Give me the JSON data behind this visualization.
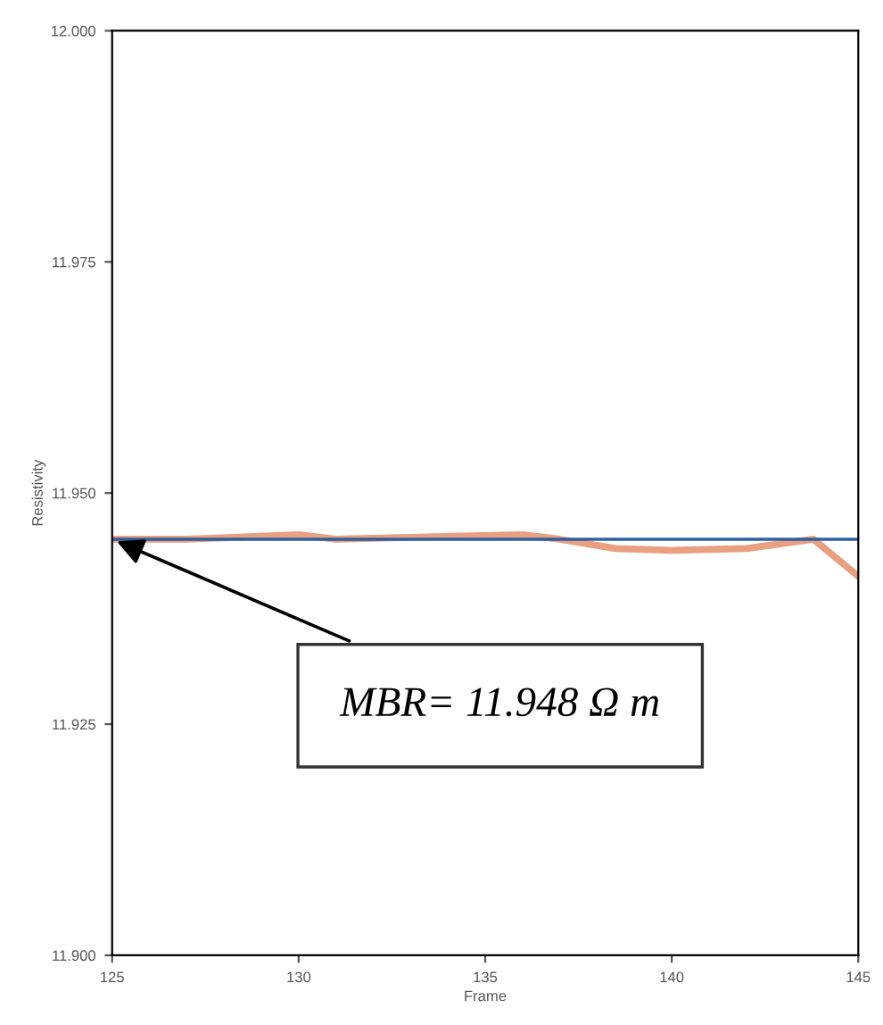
{
  "chart_data": {
    "type": "line",
    "xlabel": "Frame",
    "ylabel": "Resistivity",
    "series": [
      {
        "color": "#e8a080",
        "x": [
          125,
          127,
          130,
          131,
          136,
          137,
          138.5,
          140,
          142,
          143.8,
          145
        ],
        "values": [
          11.945,
          11.945,
          11.9455,
          11.945,
          11.9455,
          11.945,
          11.944,
          11.9438,
          11.944,
          11.945,
          11.941
        ]
      },
      {
        "color": "#2f5f9f",
        "x": [
          125,
          145
        ],
        "values": [
          11.945,
          11.945
        ]
      }
    ],
    "xlim": [
      125,
      145
    ],
    "xticks": [
      125,
      130,
      135,
      140,
      145
    ],
    "ylim": [
      11.9,
      12.0
    ],
    "yticks": [
      {
        "value": 11.9,
        "label": "11.900"
      },
      {
        "value": 11.925,
        "label": "11.925"
      },
      {
        "value": 11.95,
        "label": "11.950"
      },
      {
        "value": 11.975,
        "label": "11.975"
      },
      {
        "value": 12.0,
        "label": "12.000"
      }
    ],
    "grid": false,
    "legend": false,
    "marker": "none",
    "line_style": "solid",
    "annotations": [
      {
        "text": "MBR= 11.948 Ω m",
        "x": 125,
        "y": 11.945
      }
    ]
  }
}
